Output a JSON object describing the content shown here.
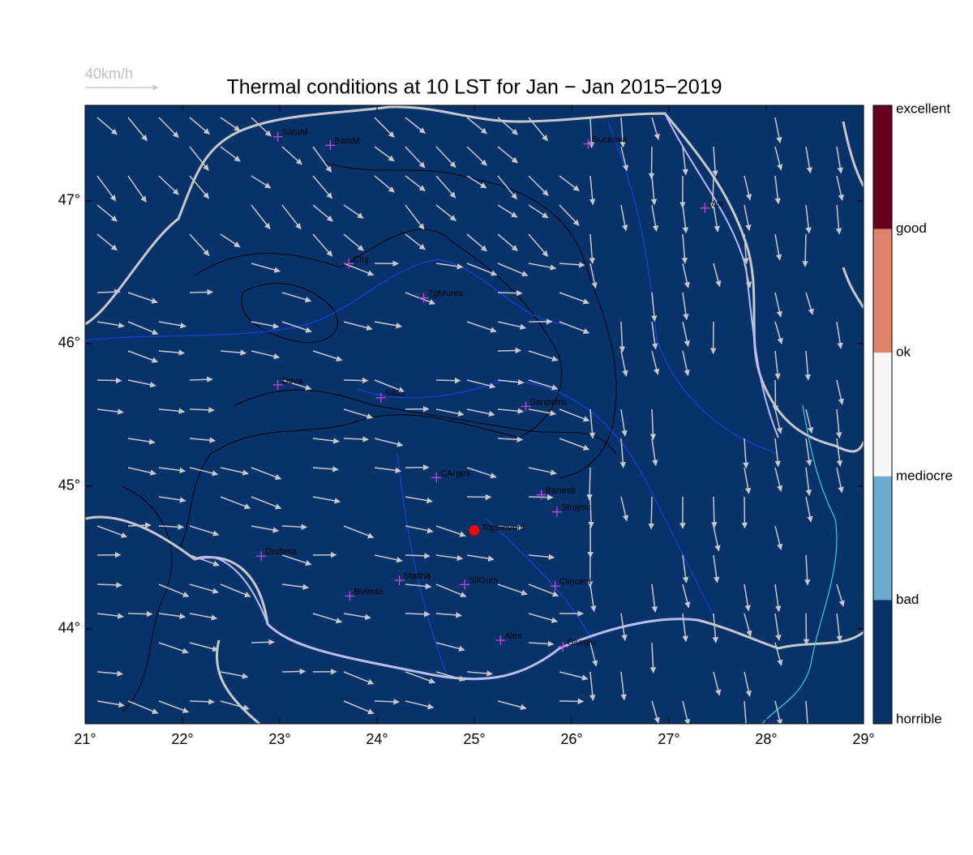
{
  "title": "Thermal conditions at 10 LST for Jan − Jan  2015−2019",
  "reference_arrow": "40km/h",
  "map": {
    "xlim": [
      21,
      29
    ],
    "ylim": [
      43.335,
      47.67
    ],
    "xticks": [
      {
        "value": 21,
        "label": "21°"
      },
      {
        "value": 22,
        "label": "22°"
      },
      {
        "value": 23,
        "label": "23°"
      },
      {
        "value": 24,
        "label": "24°"
      },
      {
        "value": 25,
        "label": "25°"
      },
      {
        "value": 26,
        "label": "26°"
      },
      {
        "value": 27,
        "label": "27°"
      },
      {
        "value": 28,
        "label": "28°"
      },
      {
        "value": 29,
        "label": "29°"
      }
    ],
    "yticks": [
      {
        "value": 44,
        "label": "44°"
      },
      {
        "value": 45,
        "label": "45°"
      },
      {
        "value": 46,
        "label": "46°"
      },
      {
        "value": 47,
        "label": "47°"
      }
    ],
    "cities": [
      {
        "name": "SatuM",
        "lon": 22.98,
        "lat": 47.45
      },
      {
        "name": "BaiaM",
        "lon": 23.52,
        "lat": 47.39
      },
      {
        "name": "Suceava",
        "lon": 26.17,
        "lat": 47.4
      },
      {
        "name": "Iasi",
        "lon": 27.37,
        "lat": 46.95
      },
      {
        "name": "Cluj",
        "lon": 23.71,
        "lat": 46.56
      },
      {
        "name": "TgMures",
        "lon": 24.48,
        "lat": 46.32
      },
      {
        "name": "Deva",
        "lon": 22.98,
        "lat": 45.71
      },
      {
        "name": "Sibiu",
        "lon": 24.04,
        "lat": 45.62
      },
      {
        "name": "Sanpetru",
        "lon": 25.53,
        "lat": 45.56
      },
      {
        "name": "CArges",
        "lon": 24.61,
        "lat": 45.06
      },
      {
        "name": "Banesti",
        "lon": 25.69,
        "lat": 44.94
      },
      {
        "name": "Strejnic",
        "lon": 25.85,
        "lat": 44.82
      },
      {
        "name": "Drobeta",
        "lon": 22.81,
        "lat": 44.51
      },
      {
        "name": "Slatina",
        "lon": 24.23,
        "lat": 44.34
      },
      {
        "name": "SilGum",
        "lon": 24.9,
        "lat": 44.31
      },
      {
        "name": "Clinceni",
        "lon": 25.83,
        "lat": 44.3
      },
      {
        "name": "BVerde",
        "lon": 23.72,
        "lat": 44.23
      },
      {
        "name": "Alex",
        "lon": 25.27,
        "lat": 43.92
      },
      {
        "name": "Giurgiu",
        "lon": 25.91,
        "lat": 43.875
      }
    ],
    "site": {
      "name": "Topoloveni",
      "lon": 25.0,
      "lat": 44.69
    }
  },
  "colorbar": {
    "labels": [
      "excellent",
      "good",
      "ok",
      "mediocre",
      "bad",
      "horrible"
    ],
    "colors": [
      "#67001f",
      "#e0836a",
      "#f7f7f7",
      "#6aa9d0",
      "#08336a"
    ]
  }
}
